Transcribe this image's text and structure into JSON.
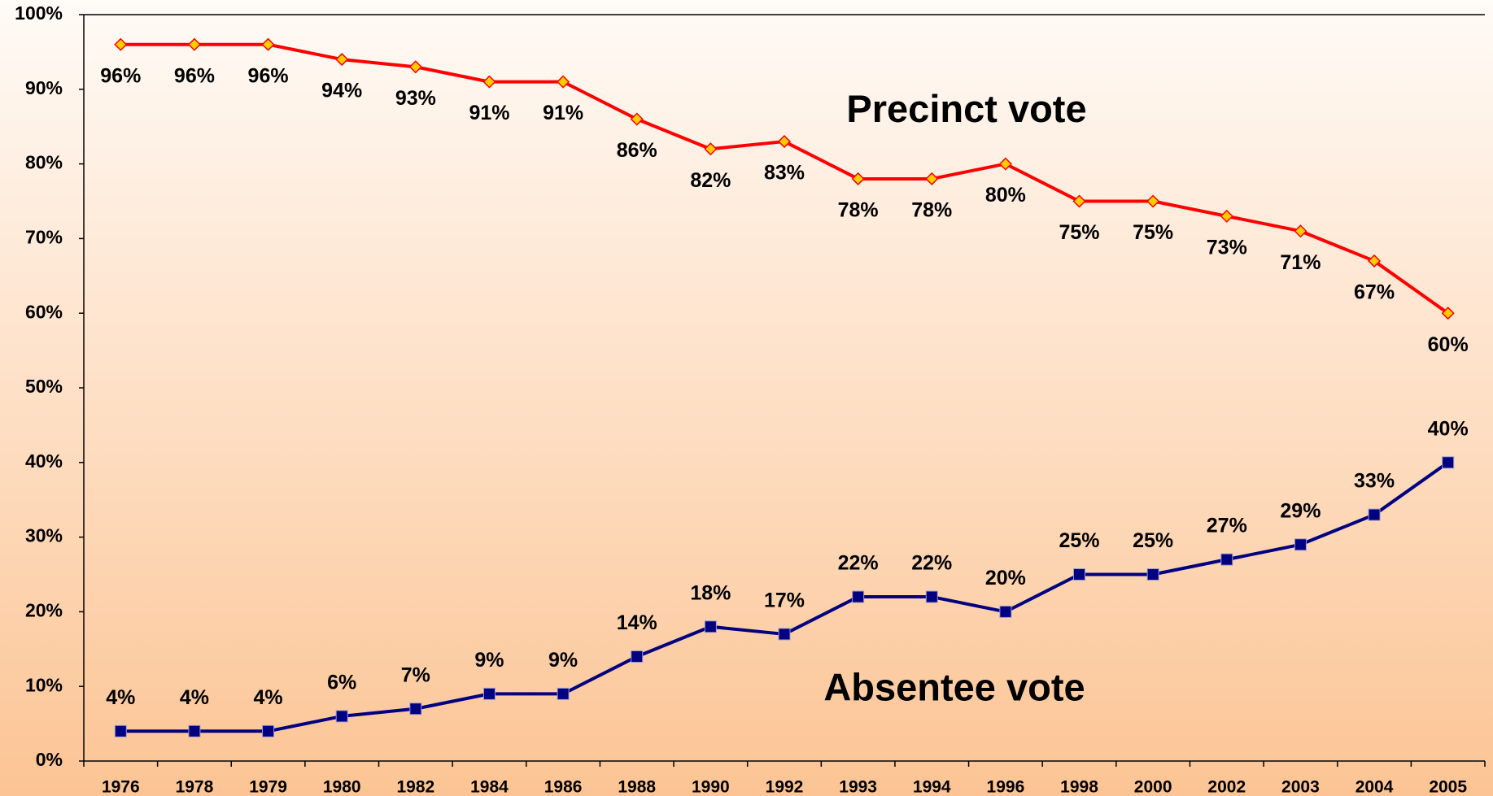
{
  "chart_data": {
    "type": "line",
    "categories": [
      "1976",
      "1978",
      "1979",
      "1980",
      "1982",
      "1984",
      "1986",
      "1988",
      "1990",
      "1992",
      "1993",
      "1994",
      "1996",
      "1998",
      "2000",
      "2002",
      "2003",
      "2004",
      "2005"
    ],
    "series": [
      {
        "name": "Precinct vote",
        "color": "#ff0000",
        "marker": "diamond",
        "marker_color": "#ffcc00",
        "values": [
          96,
          96,
          96,
          94,
          93,
          91,
          91,
          86,
          82,
          83,
          78,
          78,
          80,
          75,
          75,
          73,
          71,
          67,
          60
        ],
        "value_labels": [
          "96%",
          "96%",
          "96%",
          "94%",
          "93%",
          "91%",
          "91%",
          "86%",
          "82%",
          "83%",
          "78%",
          "78%",
          "80%",
          "75%",
          "75%",
          "73%",
          "71%",
          "67%",
          "60%"
        ]
      },
      {
        "name": "Absentee vote",
        "color": "#000080",
        "marker": "square",
        "marker_color": "#000080",
        "values": [
          4,
          4,
          4,
          6,
          7,
          9,
          9,
          14,
          18,
          17,
          22,
          22,
          20,
          25,
          25,
          27,
          29,
          33,
          40
        ],
        "value_labels": [
          "4%",
          "4%",
          "4%",
          "6%",
          "7%",
          "9%",
          "9%",
          "14%",
          "18%",
          "17%",
          "22%",
          "22%",
          "20%",
          "25%",
          "25%",
          "27%",
          "29%",
          "33%",
          "40%"
        ]
      }
    ],
    "ylim": [
      0,
      100
    ],
    "yticks": [
      {
        "value": 0,
        "label": "0%"
      },
      {
        "value": 10,
        "label": "10%"
      },
      {
        "value": 20,
        "label": "20%"
      },
      {
        "value": 30,
        "label": "30%"
      },
      {
        "value": 40,
        "label": "40%"
      },
      {
        "value": 50,
        "label": "50%"
      },
      {
        "value": 60,
        "label": "60%"
      },
      {
        "value": 70,
        "label": "70%"
      },
      {
        "value": 80,
        "label": "80%"
      },
      {
        "value": 90,
        "label": "90%"
      },
      {
        "value": 100,
        "label": "100%"
      }
    ],
    "grid": false
  }
}
